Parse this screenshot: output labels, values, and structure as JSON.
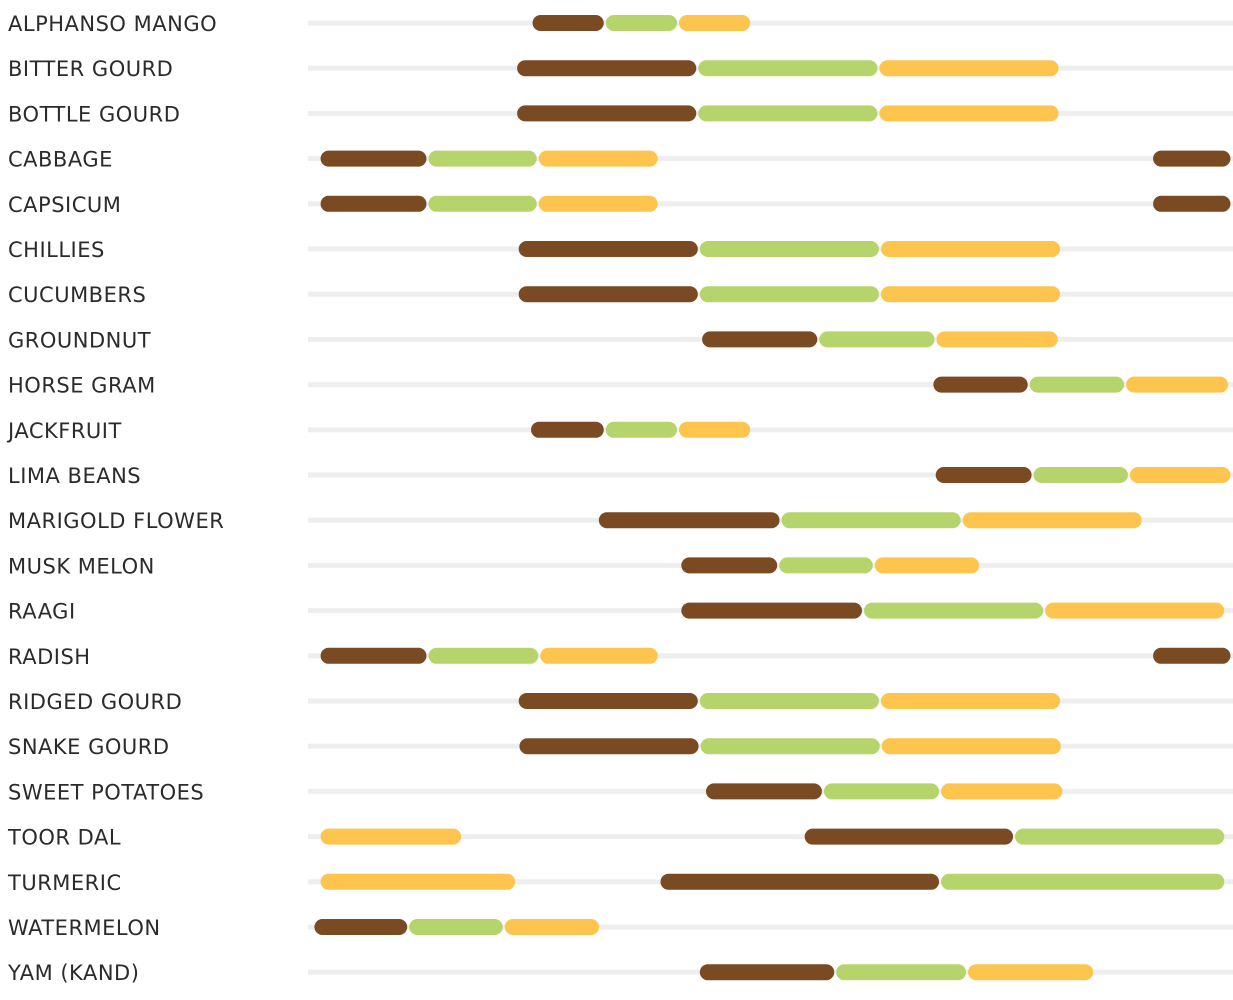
{
  "chart_data": {
    "type": "timeline",
    "title": "",
    "x_range": [
      0,
      12
    ],
    "phase_colors": {
      "phase1": "#7a4a23",
      "phase2": "#b6d46c",
      "phase3": "#fdc54d"
    },
    "track_color": "#eeeeee",
    "rows": [
      {
        "label": "ALPHANSO MANGO",
        "segments": [
          {
            "phase": "phase1",
            "start": 2.9,
            "end": 3.85
          },
          {
            "phase": "phase2",
            "start": 3.85,
            "end": 4.8
          },
          {
            "phase": "phase3",
            "start": 4.8,
            "end": 5.75
          }
        ]
      },
      {
        "label": "BITTER GOURD",
        "segments": [
          {
            "phase": "phase1",
            "start": 2.7,
            "end": 5.05
          },
          {
            "phase": "phase2",
            "start": 5.05,
            "end": 7.4
          },
          {
            "phase": "phase3",
            "start": 7.4,
            "end": 9.75
          }
        ]
      },
      {
        "label": "BOTTLE GOURD",
        "segments": [
          {
            "phase": "phase1",
            "start": 2.7,
            "end": 5.05
          },
          {
            "phase": "phase2",
            "start": 5.05,
            "end": 7.4
          },
          {
            "phase": "phase3",
            "start": 7.4,
            "end": 9.75
          }
        ]
      },
      {
        "label": "CABBAGE",
        "segments": [
          {
            "phase": "phase1",
            "start": 0.15,
            "end": 1.55
          },
          {
            "phase": "phase2",
            "start": 1.55,
            "end": 2.98
          },
          {
            "phase": "phase3",
            "start": 2.98,
            "end": 4.55
          },
          {
            "phase": "phase1",
            "start": 10.95,
            "end": 11.98
          }
        ]
      },
      {
        "label": "CAPSICUM",
        "segments": [
          {
            "phase": "phase1",
            "start": 0.15,
            "end": 1.55
          },
          {
            "phase": "phase2",
            "start": 1.55,
            "end": 2.98
          },
          {
            "phase": "phase3",
            "start": 2.98,
            "end": 4.55
          },
          {
            "phase": "phase1",
            "start": 10.95,
            "end": 11.98
          }
        ]
      },
      {
        "label": "CHILLIES",
        "segments": [
          {
            "phase": "phase1",
            "start": 2.72,
            "end": 5.07
          },
          {
            "phase": "phase2",
            "start": 5.07,
            "end": 7.42
          },
          {
            "phase": "phase3",
            "start": 7.42,
            "end": 9.77
          }
        ]
      },
      {
        "label": "CUCUMBERS",
        "segments": [
          {
            "phase": "phase1",
            "start": 2.72,
            "end": 5.07
          },
          {
            "phase": "phase2",
            "start": 5.07,
            "end": 7.42
          },
          {
            "phase": "phase3",
            "start": 7.42,
            "end": 9.77
          }
        ]
      },
      {
        "label": "GROUNDNUT",
        "segments": [
          {
            "phase": "phase1",
            "start": 5.1,
            "end": 6.62
          },
          {
            "phase": "phase2",
            "start": 6.62,
            "end": 8.14
          },
          {
            "phase": "phase3",
            "start": 8.14,
            "end": 9.74
          }
        ]
      },
      {
        "label": "HORSE GRAM",
        "segments": [
          {
            "phase": "phase1",
            "start": 8.1,
            "end": 9.35
          },
          {
            "phase": "phase2",
            "start": 9.35,
            "end": 10.6
          },
          {
            "phase": "phase3",
            "start": 10.6,
            "end": 11.95
          }
        ]
      },
      {
        "label": "JACKFRUIT",
        "segments": [
          {
            "phase": "phase1",
            "start": 2.88,
            "end": 3.85
          },
          {
            "phase": "phase2",
            "start": 3.85,
            "end": 4.8
          },
          {
            "phase": "phase3",
            "start": 4.8,
            "end": 5.75
          }
        ]
      },
      {
        "label": "LIMA BEANS",
        "segments": [
          {
            "phase": "phase1",
            "start": 8.13,
            "end": 9.4
          },
          {
            "phase": "phase2",
            "start": 9.4,
            "end": 10.65
          },
          {
            "phase": "phase3",
            "start": 10.65,
            "end": 11.98
          }
        ]
      },
      {
        "label": "MARIGOLD FLOWER",
        "segments": [
          {
            "phase": "phase1",
            "start": 3.76,
            "end": 6.13
          },
          {
            "phase": "phase2",
            "start": 6.13,
            "end": 8.48
          },
          {
            "phase": "phase3",
            "start": 8.48,
            "end": 10.83
          }
        ]
      },
      {
        "label": "MUSK MELON",
        "segments": [
          {
            "phase": "phase1",
            "start": 4.83,
            "end": 6.1
          },
          {
            "phase": "phase2",
            "start": 6.1,
            "end": 7.34
          },
          {
            "phase": "phase3",
            "start": 7.34,
            "end": 8.72
          }
        ]
      },
      {
        "label": "RAAGI",
        "segments": [
          {
            "phase": "phase1",
            "start": 4.83,
            "end": 7.2
          },
          {
            "phase": "phase2",
            "start": 7.2,
            "end": 9.55
          },
          {
            "phase": "phase3",
            "start": 9.55,
            "end": 11.9
          }
        ]
      },
      {
        "label": "RADISH",
        "segments": [
          {
            "phase": "phase1",
            "start": 0.15,
            "end": 1.55
          },
          {
            "phase": "phase2",
            "start": 1.55,
            "end": 3.0
          },
          {
            "phase": "phase3",
            "start": 3.0,
            "end": 4.55
          },
          {
            "phase": "phase1",
            "start": 10.95,
            "end": 11.98
          }
        ]
      },
      {
        "label": "RIDGED GOURD",
        "segments": [
          {
            "phase": "phase1",
            "start": 2.72,
            "end": 5.07
          },
          {
            "phase": "phase2",
            "start": 5.07,
            "end": 7.42
          },
          {
            "phase": "phase3",
            "start": 7.42,
            "end": 9.77
          }
        ]
      },
      {
        "label": "SNAKE GOURD",
        "segments": [
          {
            "phase": "phase1",
            "start": 2.73,
            "end": 5.08
          },
          {
            "phase": "phase2",
            "start": 5.08,
            "end": 7.43
          },
          {
            "phase": "phase3",
            "start": 7.43,
            "end": 9.78
          }
        ]
      },
      {
        "label": "SWEET POTATOES",
        "segments": [
          {
            "phase": "phase1",
            "start": 5.15,
            "end": 6.68
          },
          {
            "phase": "phase2",
            "start": 6.68,
            "end": 8.2
          },
          {
            "phase": "phase3",
            "start": 8.2,
            "end": 9.8
          }
        ]
      },
      {
        "label": "TOOR DAL",
        "segments": [
          {
            "phase": "phase3",
            "start": 0.15,
            "end": 2.0
          },
          {
            "phase": "phase1",
            "start": 6.43,
            "end": 9.16
          },
          {
            "phase": "phase2",
            "start": 9.16,
            "end": 11.9
          }
        ]
      },
      {
        "label": "TURMERIC",
        "segments": [
          {
            "phase": "phase3",
            "start": 0.15,
            "end": 2.7
          },
          {
            "phase": "phase1",
            "start": 4.56,
            "end": 8.2
          },
          {
            "phase": "phase2",
            "start": 8.2,
            "end": 11.9
          }
        ]
      },
      {
        "label": "WATERMELON",
        "segments": [
          {
            "phase": "phase1",
            "start": 0.07,
            "end": 1.3
          },
          {
            "phase": "phase2",
            "start": 1.3,
            "end": 2.54
          },
          {
            "phase": "phase3",
            "start": 2.54,
            "end": 3.79
          }
        ]
      },
      {
        "label": "YAM (KAND)",
        "segments": [
          {
            "phase": "phase1",
            "start": 5.07,
            "end": 6.84
          },
          {
            "phase": "phase2",
            "start": 6.84,
            "end": 8.55
          },
          {
            "phase": "phase3",
            "start": 8.55,
            "end": 10.2
          }
        ]
      }
    ]
  }
}
